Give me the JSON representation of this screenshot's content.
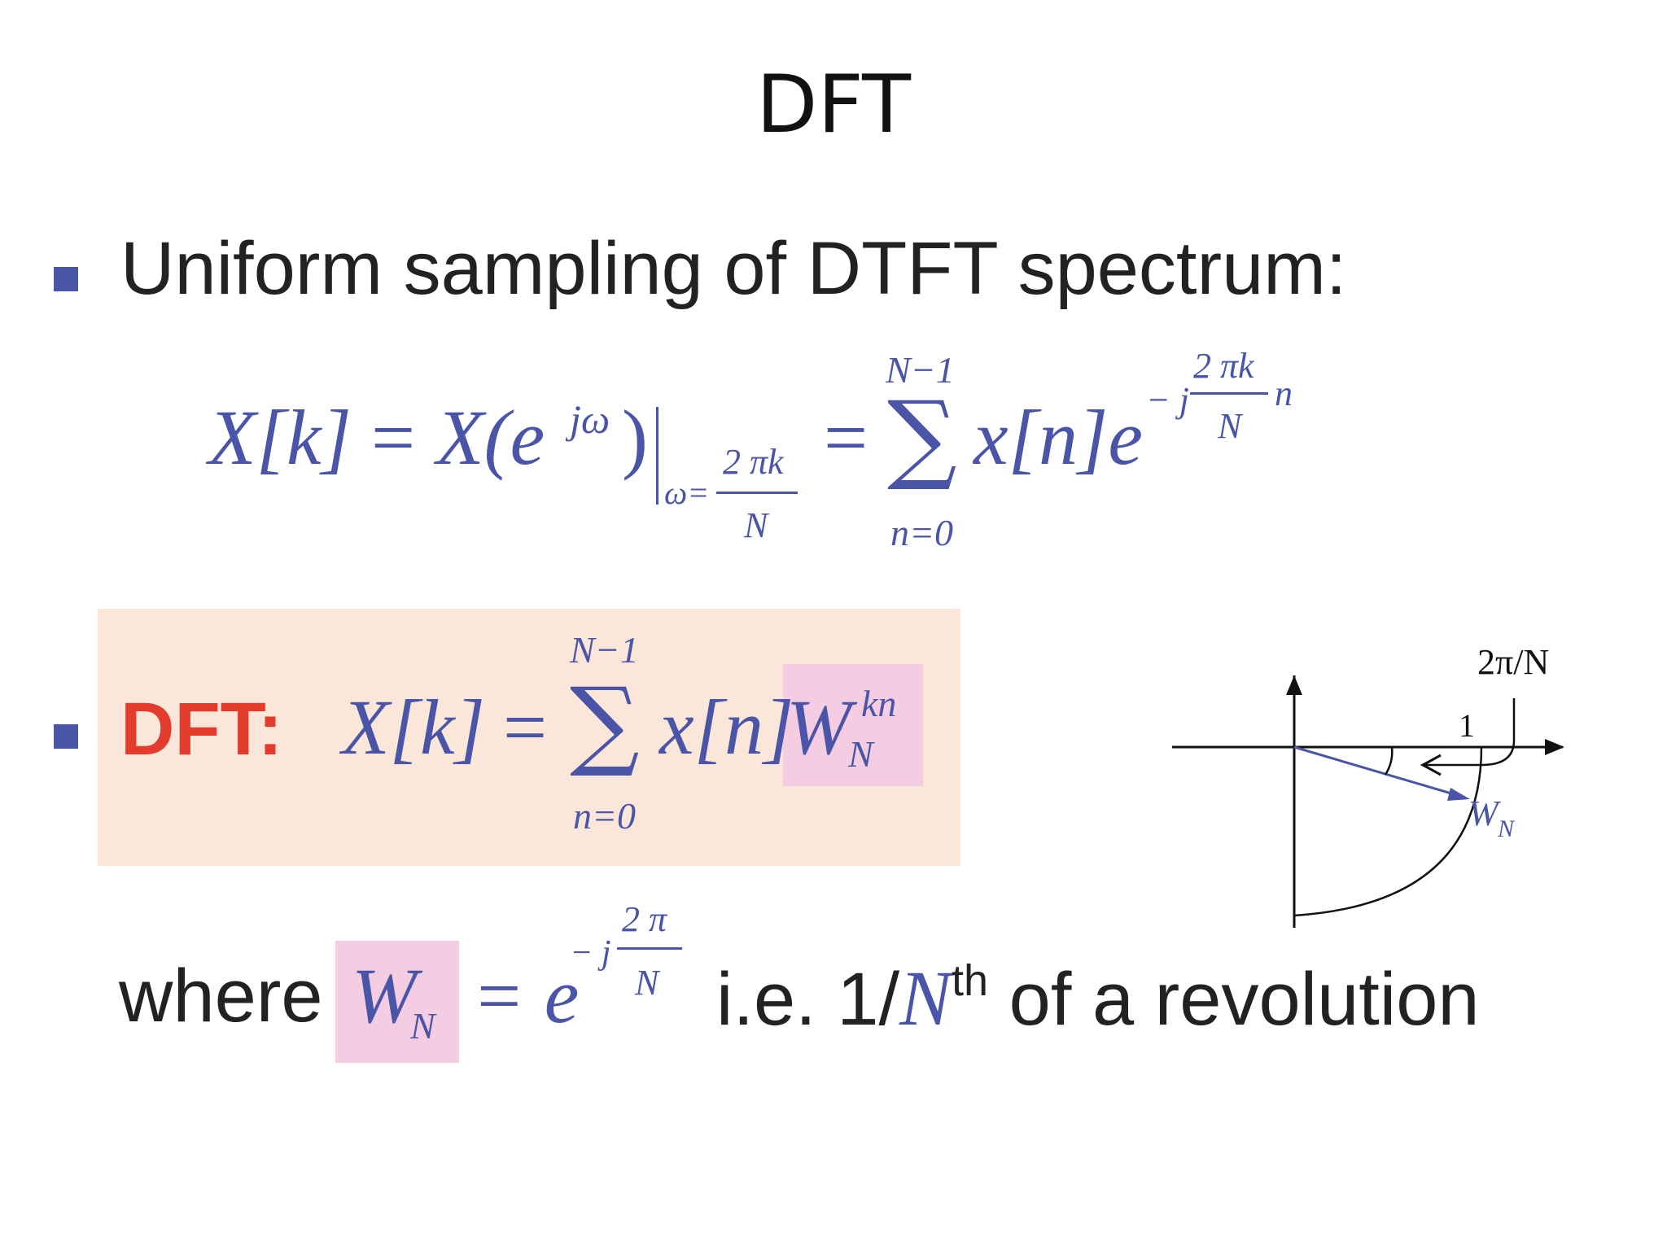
{
  "slide": {
    "title": "DFT",
    "bullet1": "Uniform sampling of DTFT spectrum:",
    "dft_label": "DFT:",
    "where_text": "where",
    "ie_text": "i.e. 1/",
    "ie_N": "N",
    "ie_sup": "th",
    "ie_rest": " of a revolution"
  },
  "eq1": {
    "lhs": "X[k]",
    "eq": "=",
    "dtft": "X(e",
    "dtft_exp": "jω",
    "dtft_close": ")",
    "eval_sub": "ω=",
    "frac_num": "2 πk",
    "frac_den": "N",
    "eq2": "=",
    "sum_top": "N−1",
    "sigma": "∑",
    "sum_bot": "n=0",
    "term": "x[n]e",
    "exp_pre": "− j",
    "exp_num": "2 πk",
    "exp_den": "N",
    "exp_post": "n"
  },
  "eq2": {
    "lhs": "X[k]",
    "eq": "=",
    "sum_top": "N−1",
    "sigma": "∑",
    "sum_bot": "n=0",
    "term": "x[n]",
    "W": "W",
    "W_sup": "kn",
    "W_sub": "N"
  },
  "eq3": {
    "W": "W",
    "W_sub": "N",
    "rhs": "= e",
    "exp_pre": "− j",
    "exp_num": "2 π",
    "exp_den": "N"
  },
  "diagram": {
    "angle_label": "2π/N",
    "unit_label": "1",
    "vector_label": "W",
    "vector_sub": "N"
  },
  "colors": {
    "math": "#4a55a8",
    "dft_label": "#e33b2c",
    "box_bg": "#fbe6da",
    "highlight": "#f5cde2"
  }
}
